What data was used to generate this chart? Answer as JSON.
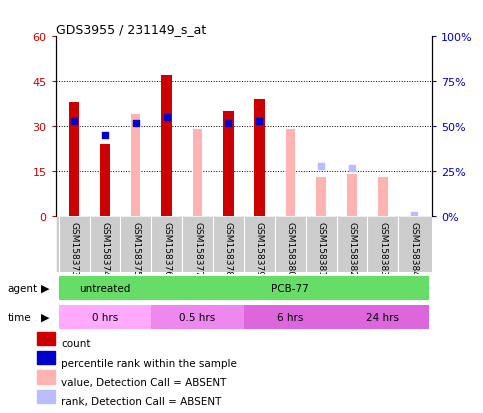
{
  "title": "GDS3955 / 231149_s_at",
  "samples": [
    "GSM158373",
    "GSM158374",
    "GSM158375",
    "GSM158376",
    "GSM158377",
    "GSM158378",
    "GSM158379",
    "GSM158380",
    "GSM158381",
    "GSM158382",
    "GSM158383",
    "GSM158384"
  ],
  "count_values": [
    38,
    24,
    null,
    47,
    null,
    35,
    39,
    null,
    null,
    null,
    null,
    null
  ],
  "percentile_rank": [
    53,
    45,
    52,
    55,
    null,
    52,
    53,
    null,
    null,
    null,
    null,
    null
  ],
  "absent_value": [
    null,
    null,
    34,
    null,
    29,
    null,
    null,
    29,
    13,
    14,
    13,
    null
  ],
  "absent_rank": [
    null,
    null,
    null,
    null,
    null,
    null,
    null,
    null,
    28,
    27,
    null,
    1
  ],
  "ylim_left": [
    0,
    60
  ],
  "ylim_right": [
    0,
    100
  ],
  "yticks_left": [
    0,
    15,
    30,
    45,
    60
  ],
  "yticks_right": [
    0,
    25,
    50,
    75,
    100
  ],
  "ytick_labels_left": [
    "0",
    "15",
    "30",
    "45",
    "60"
  ],
  "ytick_labels_right": [
    "0%",
    "25%",
    "50%",
    "75%",
    "100%"
  ],
  "color_count": "#cc0000",
  "color_rank": "#0000cc",
  "color_absent_value": "#ffb3b3",
  "color_absent_rank": "#bbbbff",
  "agent_groups": [
    {
      "label": "untreated",
      "start": 0,
      "end": 3,
      "color": "#66dd66"
    },
    {
      "label": "PCB-77",
      "start": 3,
      "end": 12,
      "color": "#66dd66"
    }
  ],
  "time_groups": [
    {
      "label": "0 hrs",
      "start": 0,
      "end": 3,
      "color": "#ffaaff"
    },
    {
      "label": "0.5 hrs",
      "start": 3,
      "end": 6,
      "color": "#ee88ee"
    },
    {
      "label": "6 hrs",
      "start": 6,
      "end": 9,
      "color": "#dd66dd"
    },
    {
      "label": "24 hrs",
      "start": 9,
      "end": 12,
      "color": "#dd66dd"
    }
  ],
  "legend_items": [
    {
      "label": "count",
      "color": "#cc0000"
    },
    {
      "label": "percentile rank within the sample",
      "color": "#0000cc"
    },
    {
      "label": "value, Detection Call = ABSENT",
      "color": "#ffb3b3"
    },
    {
      "label": "rank, Detection Call = ABSENT",
      "color": "#bbbbff"
    }
  ]
}
